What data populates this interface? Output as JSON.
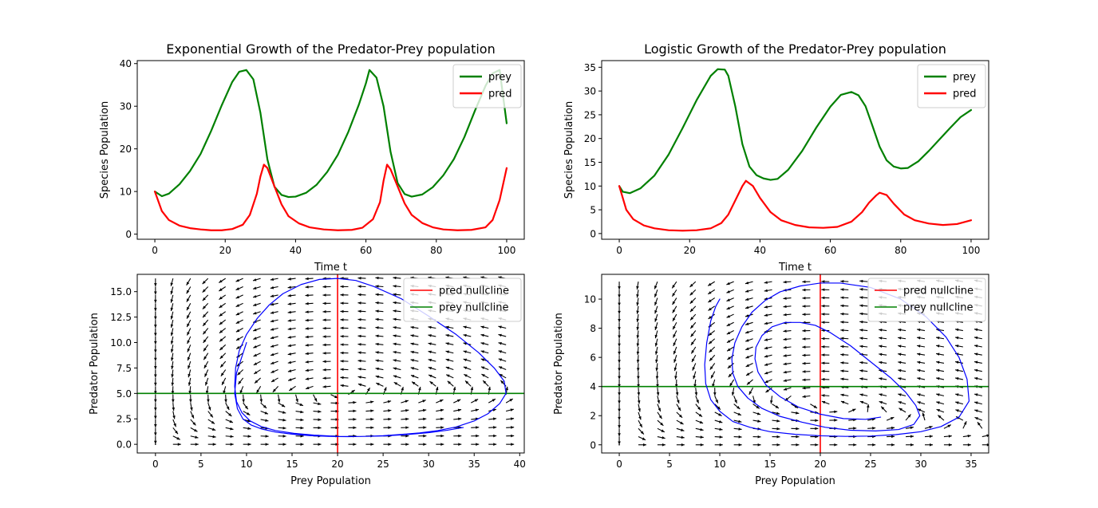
{
  "colors": {
    "prey": "#008000",
    "pred": "#ff0000",
    "trajectory": "#0000ff",
    "quiver": "#000000"
  },
  "chart_data": [
    {
      "type": "line",
      "title": "Exponential Growth of the Predator-Prey population",
      "xlabel": "Time t",
      "ylabel": "Species Population",
      "xlim": [
        -5,
        105
      ],
      "ylim": [
        -1.2,
        40.7
      ],
      "xticks": [
        0,
        20,
        40,
        60,
        80,
        100
      ],
      "yticks": [
        0,
        10,
        20,
        30,
        40
      ],
      "xtick_labels": [
        "0",
        "20",
        "40",
        "60",
        "80",
        "100"
      ],
      "ytick_labels": [
        "0",
        "10",
        "20",
        "30",
        "40"
      ],
      "legend": "top-right",
      "series": [
        {
          "name": "prey",
          "color": "#008000",
          "x": [
            0,
            2,
            4,
            7,
            10,
            13,
            16,
            19,
            22,
            24,
            26,
            28,
            30,
            32,
            34,
            36,
            38,
            40,
            43,
            46,
            49,
            52,
            55,
            58,
            60,
            61,
            63,
            65,
            67,
            69,
            71,
            73,
            76,
            79,
            82,
            85,
            88,
            91,
            94,
            96,
            98,
            100
          ],
          "y": [
            10,
            8.9,
            9.5,
            11.7,
            14.8,
            18.8,
            24.2,
            30.2,
            35.7,
            38.1,
            38.5,
            36.3,
            28.5,
            17.5,
            11.1,
            9.2,
            8.7,
            8.8,
            9.7,
            11.6,
            14.6,
            18.6,
            24,
            30.4,
            35.4,
            38.5,
            36.7,
            30,
            19.3,
            12,
            9.4,
            8.8,
            9.3,
            11,
            13.8,
            17.6,
            22.8,
            29,
            34.8,
            37.7,
            38.5,
            26
          ]
        },
        {
          "name": "pred",
          "color": "#ff0000",
          "x": [
            0,
            2,
            4,
            7,
            10,
            13,
            16,
            19,
            22,
            25,
            27,
            29,
            30,
            31,
            32,
            34,
            36,
            38,
            41,
            44,
            48,
            52,
            56,
            59,
            62,
            64,
            65,
            66,
            67,
            69,
            71,
            73,
            76,
            79,
            82,
            86,
            90,
            94,
            96,
            98,
            100
          ],
          "y": [
            10,
            5.4,
            3.3,
            2,
            1.4,
            1.1,
            0.9,
            0.9,
            1.2,
            2.2,
            4.5,
            9.5,
            13.5,
            16.3,
            15.5,
            11.2,
            7,
            4.2,
            2.5,
            1.6,
            1.1,
            0.9,
            1,
            1.5,
            3.5,
            7.5,
            12.5,
            16.3,
            15.2,
            11.2,
            7.2,
            4.5,
            2.6,
            1.6,
            1.1,
            0.9,
            1,
            1.6,
            3.3,
            8,
            15.5
          ]
        }
      ]
    },
    {
      "type": "line",
      "title": "Logistic Growth of the Predator-Prey population",
      "xlabel": "Time t",
      "ylabel": "Species Population",
      "xlim": [
        -5,
        105
      ],
      "ylim": [
        -1.2,
        36.4
      ],
      "xticks": [
        0,
        20,
        40,
        60,
        80,
        100
      ],
      "yticks": [
        0,
        5,
        10,
        15,
        20,
        25,
        30,
        35
      ],
      "xtick_labels": [
        "0",
        "20",
        "40",
        "60",
        "80",
        "100"
      ],
      "ytick_labels": [
        "0",
        "5",
        "10",
        "15",
        "20",
        "25",
        "30",
        "35"
      ],
      "legend": "top-right",
      "series": [
        {
          "name": "prey",
          "color": "#008000",
          "x": [
            0,
            1,
            3,
            6,
            10,
            14,
            18,
            22,
            26,
            28,
            30,
            31,
            33,
            35,
            37,
            39,
            41,
            43,
            45,
            48,
            52,
            56,
            60,
            63,
            66,
            68,
            70,
            72,
            74,
            76,
            78,
            80,
            82,
            85,
            88,
            91,
            94,
            97,
            100
          ],
          "y": [
            10,
            8.8,
            8.5,
            9.5,
            12.2,
            16.6,
            22.2,
            28.1,
            33.2,
            34.6,
            34.5,
            33.2,
            26.7,
            18.8,
            14.1,
            12.3,
            11.6,
            11.3,
            11.5,
            13.4,
            17.4,
            22.3,
            26.7,
            29.2,
            29.8,
            29.1,
            26.8,
            22.6,
            18.3,
            15.4,
            14.1,
            13.7,
            13.8,
            15.2,
            17.4,
            19.8,
            22.2,
            24.5,
            26
          ]
        },
        {
          "name": "pred",
          "color": "#ff0000",
          "x": [
            0,
            2,
            4,
            7,
            10,
            14,
            18,
            22,
            26,
            29,
            31,
            33,
            35,
            36,
            38,
            40,
            43,
            46,
            50,
            54,
            58,
            62,
            66,
            69,
            71,
            73,
            74,
            76,
            78,
            81,
            84,
            88,
            92,
            96,
            100
          ],
          "y": [
            10,
            5,
            3,
            1.7,
            1.1,
            0.7,
            0.6,
            0.7,
            1.1,
            2.2,
            4,
            7,
            10,
            11.1,
            10,
            7.5,
            4.5,
            2.8,
            1.8,
            1.3,
            1.2,
            1.4,
            2.5,
            4.5,
            6.5,
            8,
            8.6,
            8.1,
            6.3,
            4,
            2.8,
            2.1,
            1.8,
            2,
            2.8
          ]
        }
      ]
    },
    {
      "type": "line",
      "title": "",
      "xlabel": "Prey Population",
      "ylabel": "Predator Population",
      "xlim": [
        -2,
        40.5
      ],
      "ylim": [
        -0.85,
        16.7
      ],
      "xticks": [
        0,
        5,
        10,
        15,
        20,
        25,
        30,
        35,
        40
      ],
      "yticks": [
        0,
        2.5,
        5,
        7.5,
        10,
        12.5,
        15
      ],
      "xtick_labels": [
        "0",
        "5",
        "10",
        "15",
        "20",
        "25",
        "30",
        "35",
        "40"
      ],
      "ytick_labels": [
        "0.0",
        "2.5",
        "5.0",
        "7.5",
        "10.0",
        "12.5",
        "15.0"
      ],
      "legend": "top-right",
      "nullclines": {
        "pred_x": 20,
        "prey_y": 5
      },
      "quiver_grid": {
        "x_start": 0,
        "x_end": 38.5,
        "x_count": 21,
        "y_start": 0,
        "y_end": 16.3,
        "y_count": 21
      },
      "quiver_model": {
        "a": 0.5,
        "b": 0.1,
        "c": 0.5,
        "d": 0.025,
        "K": 0
      },
      "series": [
        {
          "name": "pred nullcline",
          "color": "#ff0000"
        },
        {
          "name": "prey nullcline",
          "color": "#008000"
        },
        {
          "name": "trajectory",
          "color": "#0000ff",
          "x": [
            10,
            8.9,
            8.7,
            9,
            9.6,
            10.5,
            11.7,
            13.2,
            15,
            17,
            19,
            20,
            21.2,
            23,
            25,
            27,
            29,
            31,
            33,
            35,
            36.5,
            37.8,
            38.5,
            38.3,
            37.2,
            35.5,
            33,
            30,
            27,
            24,
            22,
            20,
            18,
            16,
            14,
            12.5,
            11.2,
            10,
            9.2,
            8.8,
            8.7,
            8.9,
            9.5,
            10.4,
            11.6,
            13.2,
            15.2,
            17.4,
            20,
            22.5,
            25,
            27.5,
            30,
            32,
            33.8
          ],
          "y": [
            10,
            7,
            5,
            3.5,
            2.5,
            1.9,
            1.5,
            1.2,
            1,
            0.85,
            0.78,
            0.76,
            0.75,
            0.78,
            0.85,
            0.97,
            1.12,
            1.35,
            1.7,
            2.3,
            3,
            4,
            5,
            6.2,
            7.5,
            9,
            10.8,
            12.6,
            14.3,
            15.5,
            16.1,
            16.3,
            16.2,
            15.7,
            14.8,
            13.7,
            12.4,
            10.8,
            9.2,
            7.5,
            5.7,
            4.2,
            3.1,
            2.3,
            1.75,
            1.35,
            1.08,
            0.9,
            0.78,
            0.77,
            0.82,
            0.95,
            1.15,
            1.38,
            1.65
          ]
        }
      ]
    },
    {
      "type": "line",
      "title": "",
      "xlabel": "Prey Population",
      "ylabel": "Predator Population",
      "xlim": [
        -1.75,
        36.75
      ],
      "ylim": [
        -0.56,
        11.7
      ],
      "xticks": [
        0,
        5,
        10,
        15,
        20,
        25,
        30,
        35
      ],
      "yticks": [
        0,
        2,
        4,
        6,
        8,
        10
      ],
      "xtick_labels": [
        "0",
        "5",
        "10",
        "15",
        "20",
        "25",
        "30",
        "35"
      ],
      "ytick_labels": [
        "0",
        "2",
        "4",
        "6",
        "8",
        "10"
      ],
      "legend": "top-right",
      "nullclines": {
        "pred_x": 20,
        "prey_y": 4
      },
      "quiver_grid": {
        "x_start": 0,
        "x_end": 38,
        "x_count": 21,
        "y_start": 0,
        "y_end": 11.2,
        "y_count": 21
      },
      "quiver_model": {
        "a": 0.5,
        "b": 0.1,
        "c": 0.5,
        "d": 0.025,
        "K": 45
      },
      "series": [
        {
          "name": "pred nullcline",
          "color": "#ff0000"
        },
        {
          "name": "prey nullcline",
          "color": "#008000"
        },
        {
          "name": "trajectory",
          "color": "#0000ff",
          "x": [
            10,
            9.6,
            9.1,
            8.7,
            8.5,
            8.6,
            9.1,
            10,
            11.3,
            13,
            15,
            17.5,
            20,
            22.5,
            25,
            27.5,
            30,
            32,
            33.8,
            34.8,
            34.6,
            33.8,
            32.5,
            30.5,
            28,
            25,
            22,
            20,
            18,
            16,
            14.5,
            13.2,
            12.2,
            11.5,
            11.2,
            11.3,
            11.8,
            12.8,
            14.2,
            16,
            18.2,
            20.5,
            23,
            25.5,
            27.8,
            29.3,
            29.9,
            29.5,
            28.5,
            27,
            25,
            23,
            21,
            19.5,
            18,
            16.5,
            15.2,
            14.2,
            13.6,
            13.5,
            13.8,
            14.6,
            16,
            17.8,
            20,
            22.3,
            24.5,
            26
          ],
          "y": [
            10,
            9.5,
            8.5,
            7,
            5.5,
            4.2,
            3.1,
            2.3,
            1.6,
            1.2,
            0.9,
            0.72,
            0.62,
            0.58,
            0.6,
            0.7,
            0.9,
            1.25,
            1.9,
            3,
            4.5,
            6,
            7.4,
            8.8,
            10,
            10.8,
            11.1,
            11.1,
            10.9,
            10.5,
            9.9,
            9.1,
            8.1,
            7,
            5.9,
            4.9,
            4,
            3.2,
            2.5,
            1.95,
            1.55,
            1.2,
            1,
            0.95,
            1.05,
            1.4,
            2,
            2.7,
            3.6,
            4.6,
            5.7,
            6.8,
            7.7,
            8.2,
            8.4,
            8.4,
            8.1,
            7.5,
            6.7,
            5.9,
            5,
            4.1,
            3.3,
            2.6,
            2.1,
            1.8,
            1.75,
            1.9
          ]
        }
      ]
    }
  ]
}
